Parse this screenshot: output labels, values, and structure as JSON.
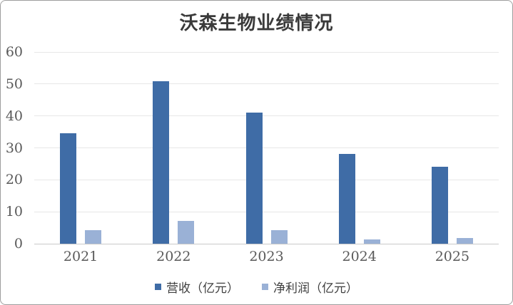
{
  "title": "沃森生物业绩情况",
  "colors": {
    "revenue": "#3f6ca6",
    "net_profit": "#9ab1d6",
    "gridline": "#e7e7e7",
    "axis_line": "#c9c9c9",
    "tick_text": "#595959",
    "title_text": "#3a3a3a",
    "frame_border": "#9e9e9e",
    "background": "#ffffff"
  },
  "chart_data": {
    "type": "bar",
    "title": "沃森生物业绩情况",
    "categories": [
      "2021",
      "2022",
      "2023",
      "2024",
      "2025"
    ],
    "series": [
      {
        "key": "revenue",
        "name": "营收（亿元）",
        "color": "#3f6ca6",
        "values": [
          34.6,
          50.9,
          41.1,
          28.2,
          24.1
        ]
      },
      {
        "key": "net-profit",
        "name": "净利润（亿元）",
        "color": "#9ab1d6",
        "values": [
          4.2,
          7.2,
          4.2,
          1.4,
          1.7
        ]
      }
    ],
    "xlabel": "",
    "ylabel": "",
    "ylim": [
      0,
      60
    ],
    "yticks": [
      0,
      10,
      20,
      30,
      40,
      50,
      60
    ],
    "grid": true,
    "legend_position": "bottom"
  },
  "legend": {
    "items": [
      {
        "label": "营收（亿元）",
        "color": "#3f6ca6"
      },
      {
        "label": "净利润（亿元）",
        "color": "#9ab1d6"
      }
    ]
  }
}
